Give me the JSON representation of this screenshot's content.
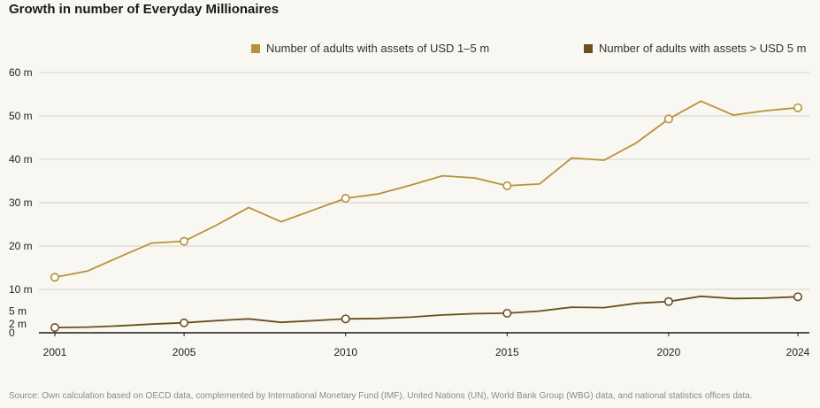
{
  "title": "Growth in number of Everyday Millionaires",
  "source": "Source: Own calculation based on OECD data, complemented by International Monetary Fund (IMF), United Nations (UN), World Bank Group (WBG) data, and national statistics offices data.",
  "colors": {
    "series1": "#b8923a",
    "series2": "#6b4f1d",
    "grid": "#d2d0c8",
    "background": "#f8f7f2"
  },
  "chart_data": {
    "type": "line",
    "title": "Growth in number of Everyday Millionaires",
    "xlabel": "",
    "ylabel": "",
    "xlim": [
      2001,
      2024
    ],
    "ylim": [
      0,
      60
    ],
    "grid": true,
    "legend_position": "top-right",
    "y_ticks": [
      {
        "value": 0,
        "label": "0"
      },
      {
        "value": 2,
        "label": "2 m"
      },
      {
        "value": 5,
        "label": "5 m"
      },
      {
        "value": 10,
        "label": "10 m"
      },
      {
        "value": 20,
        "label": "20 m"
      },
      {
        "value": 30,
        "label": "30 m"
      },
      {
        "value": 40,
        "label": "40 m"
      },
      {
        "value": 50,
        "label": "50 m"
      },
      {
        "value": 60,
        "label": "60 m"
      }
    ],
    "gridlines": [
      10,
      20,
      30,
      40,
      50,
      60
    ],
    "x_ticks": [
      2001,
      2005,
      2010,
      2015,
      2020,
      2024
    ],
    "x": [
      2001,
      2002,
      2003,
      2004,
      2005,
      2006,
      2007,
      2008,
      2009,
      2010,
      2011,
      2012,
      2013,
      2014,
      2015,
      2016,
      2017,
      2018,
      2019,
      2020,
      2021,
      2022,
      2023,
      2024
    ],
    "series": [
      {
        "name": "Number of adults with assets of USD 1–5 m",
        "color": "#b8923a",
        "values": [
          12.8,
          14.2,
          17.5,
          20.7,
          21.1,
          24.8,
          28.9,
          25.6,
          28.3,
          31.0,
          32.0,
          34.0,
          36.2,
          35.7,
          33.9,
          34.3,
          40.3,
          39.8,
          43.8,
          49.3,
          53.4,
          50.2,
          51.2,
          51.9
        ],
        "markers": [
          2001,
          2005,
          2010,
          2015,
          2020,
          2024
        ]
      },
      {
        "name": "Number of adults with assets > USD 5 m",
        "color": "#6b4f1d",
        "values": [
          1.2,
          1.3,
          1.6,
          2.0,
          2.3,
          2.8,
          3.2,
          2.4,
          2.8,
          3.2,
          3.3,
          3.6,
          4.1,
          4.4,
          4.5,
          5.0,
          5.9,
          5.8,
          6.8,
          7.2,
          8.4,
          7.9,
          8.0,
          8.3
        ],
        "markers": [
          2001,
          2005,
          2010,
          2015,
          2020,
          2024
        ]
      }
    ]
  }
}
